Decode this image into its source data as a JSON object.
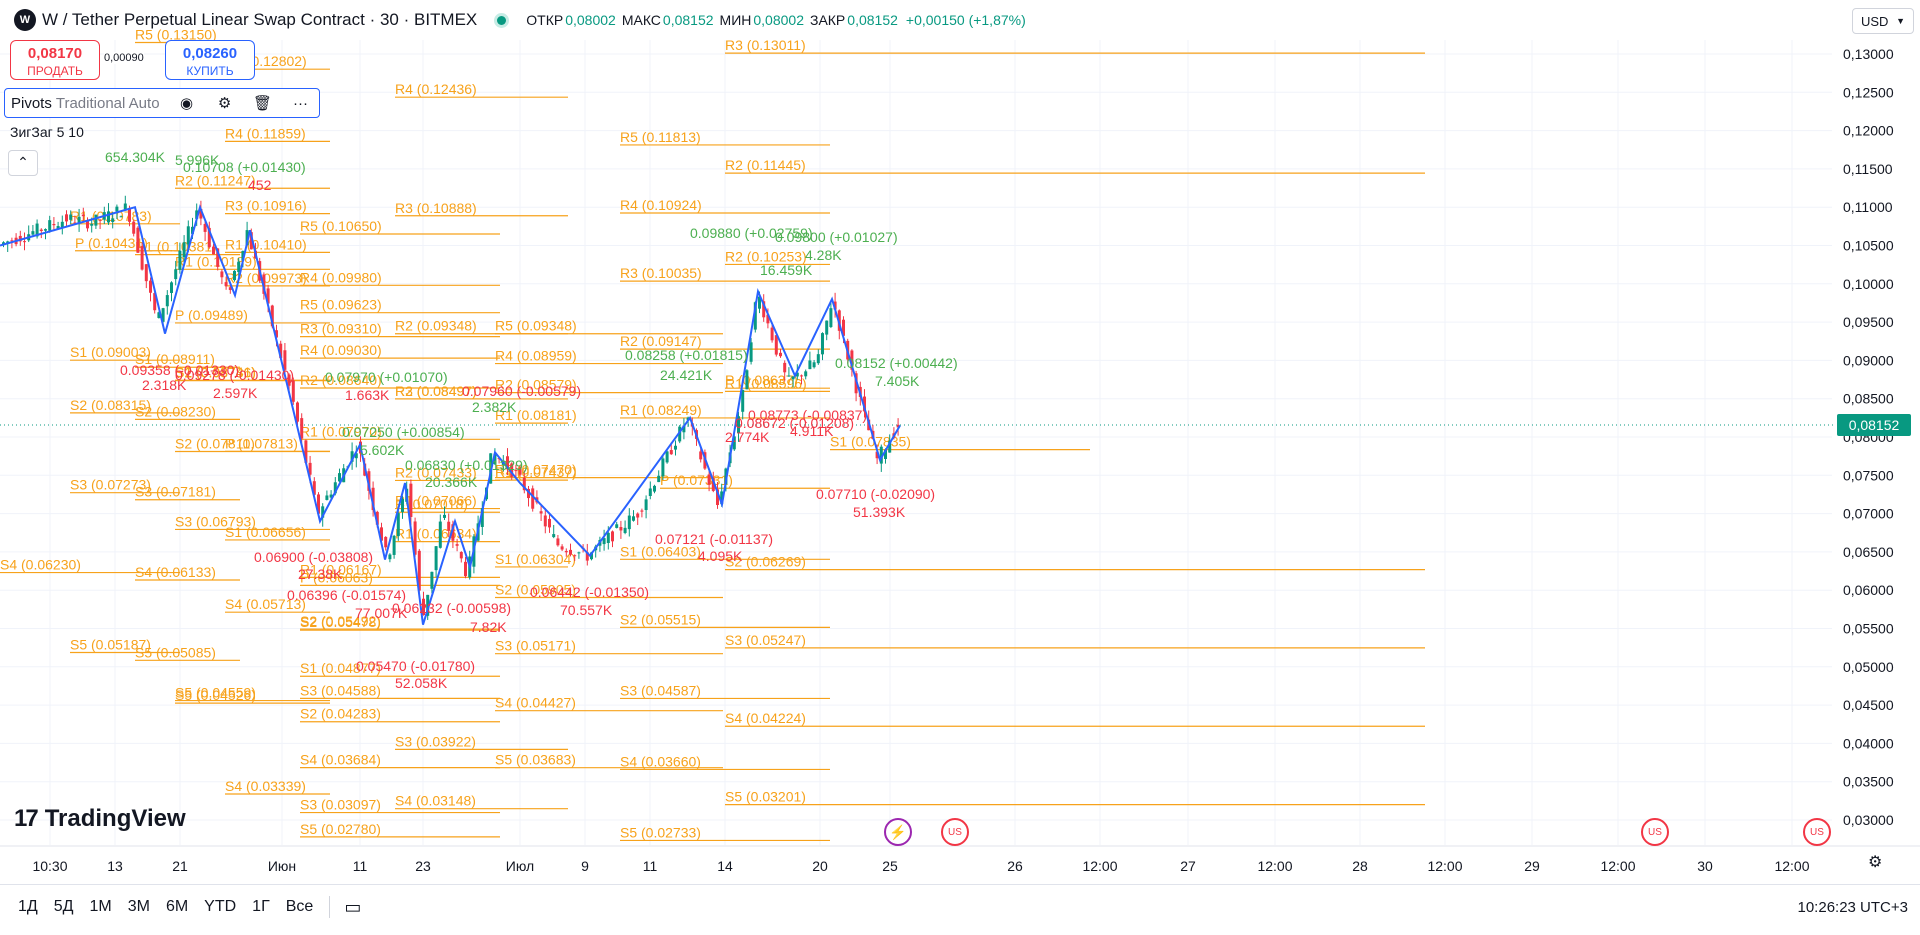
{
  "header": {
    "symbol_title": "W / Tether Perpetual Linear Swap Contract · 30 · BITMEX",
    "logo_text": "W",
    "ohlc": [
      {
        "label": "ОТКР",
        "value": "0,08002"
      },
      {
        "label": "МАКС",
        "value": "0,08152"
      },
      {
        "label": "МИН",
        "value": "0,08002"
      },
      {
        "label": "ЗАКР",
        "value": "0,08152"
      }
    ],
    "change": "+0,00150 (+1,87%)",
    "currency": "USD"
  },
  "trade": {
    "sell_price": "0,08170",
    "sell_label": "ПРОДАТЬ",
    "spread": "0,00090",
    "buy_price": "0,08260",
    "buy_label": "КУПИТЬ"
  },
  "indicators": {
    "pivots_name": "Pivots",
    "pivots_params": "Traditional Auto",
    "zigzag": "ЗигЗаг 5 10"
  },
  "colors": {
    "pivot": "#f7a21b",
    "up": "#089981",
    "down": "#f23645",
    "zigzag": "#2962ff",
    "grid": "#f0f3fa",
    "text_green": "#4caf50",
    "text_red": "#f23645"
  },
  "price_axis": {
    "labels": [
      "0,13000",
      "0,12500",
      "0,12000",
      "0,11500",
      "0,11000",
      "0,10500",
      "0,10000",
      "0,09500",
      "0,09000",
      "0,08500",
      "0,08000",
      "0,07500",
      "0,07000",
      "0,06500",
      "0,06000",
      "0,05500",
      "0,05000",
      "0,04500",
      "0,04000",
      "0,03500",
      "0,03000"
    ],
    "current_price": "0,08152"
  },
  "time_axis": {
    "labels": [
      "10:30",
      "13",
      "21",
      "Июн",
      "11",
      "23",
      "Июл",
      "9",
      "11",
      "14",
      "20",
      "25",
      "26",
      "12:00",
      "27",
      "12:00",
      "28",
      "12:00",
      "29",
      "12:00",
      "30",
      "12:00"
    ]
  },
  "pivot_levels": [
    [
      "R3 (0.13011)",
      0.13011,
      0
    ],
    [
      "R4 (0.12436)",
      0.12436,
      0
    ],
    [
      "R5 (0.11813)",
      0.11813,
      0
    ],
    [
      "R2 (0.11445)",
      0.11445,
      0
    ],
    [
      "R3 (0.10888)",
      0.10888,
      0
    ],
    [
      "R4 (0.10924)",
      0.10924,
      0
    ],
    [
      "R3 (0.10035)",
      0.10035,
      0
    ],
    [
      "R2 (0.09147)",
      0.09147,
      0
    ],
    [
      "R4 (0.08959)",
      0.08959,
      0
    ],
    [
      "R1 (0.08249)",
      0.08249,
      0
    ],
    [
      "S1 (0.07835)",
      0.07835,
      0
    ],
    [
      "P (0.07331)",
      0.07331,
      0
    ],
    [
      "S1 (0.06403)",
      0.06403,
      0
    ],
    [
      "S2 (0.06269)",
      0.06269,
      0
    ],
    [
      "S2 (0.05515)",
      0.05515,
      0
    ],
    [
      "S3 (0.05247)",
      0.05247,
      0
    ],
    [
      "S3 (0.04587)",
      0.04587,
      0
    ],
    [
      "S4 (0.04224)",
      0.04224,
      0
    ],
    [
      "S4 (0.03660)",
      0.0366,
      0
    ],
    [
      "S5 (0.03201)",
      0.03201,
      0
    ],
    [
      "S5 (0.02733)",
      0.02733,
      0
    ],
    [
      "R5 (0.10650)",
      0.1065,
      0
    ],
    [
      "R3 (0.10916)",
      0.10916,
      0
    ],
    [
      "R2 (0.11247)",
      0.11247,
      0
    ],
    [
      "R4 (0.09980)",
      0.0998,
      0
    ],
    [
      "R5 (0.09623)",
      0.09623,
      0
    ],
    [
      "R3 (0.09310)",
      0.0931,
      0
    ],
    [
      "R4 (0.09030)",
      0.0903,
      0
    ],
    [
      "R2 (0.09348)",
      0.09348,
      0
    ],
    [
      "R5 (0.09348)",
      0.09348,
      0
    ],
    [
      "R1 (0.08181)",
      0.08181,
      0
    ],
    [
      "R1 (0.07437)",
      0.07437,
      0
    ],
    [
      "S1 (0.06304)",
      0.06304,
      0
    ],
    [
      "S2 (0.05905)",
      0.05905,
      0
    ],
    [
      "S3 (0.05171)",
      0.05171,
      0
    ],
    [
      "S4 (0.04427)",
      0.04427,
      0
    ],
    [
      "S5 (0.03683)",
      0.03683,
      0
    ],
    [
      "S4 (0.03148)",
      0.03148,
      0
    ],
    [
      "S3 (0.03922)",
      0.03922,
      0
    ],
    [
      "S2 (0.04283)",
      0.04283,
      0
    ],
    [
      "S1 (0.04877)",
      0.04877,
      0
    ],
    [
      "S2 (0.05492)",
      0.05492,
      0
    ],
    [
      "S3 (0.06793)",
      0.06793,
      0
    ],
    [
      "S1 (0.06656)",
      0.06656,
      0
    ],
    [
      "S4 (0.05713)",
      0.05713,
      0
    ],
    [
      "S5 (0.04526)",
      0.04526,
      0
    ],
    [
      "S3 (0.04588)",
      0.04588,
      0
    ],
    [
      "S4 (0.03684)",
      0.03684,
      0
    ],
    [
      "S4 (0.03339)",
      0.03339,
      0
    ],
    [
      "S3 (0.03097)",
      0.03097,
      0
    ],
    [
      "S5 (0.02780)",
      0.0278,
      0
    ],
    [
      "R3 (0.08497)",
      0.08497,
      0
    ],
    [
      "R2 (0.08640)",
      0.0864,
      0
    ],
    [
      "R1 (0.07970)",
      0.0797,
      0
    ],
    [
      "S2 (0.07811)",
      0.07811,
      0
    ],
    [
      "P (0.07813)",
      0.07813,
      0
    ],
    [
      "S3 (0.07181)",
      0.07181,
      0
    ],
    [
      "S1 (0.09003)",
      0.09003,
      0
    ],
    [
      "S2 (0.08315)",
      0.08315,
      0
    ],
    [
      "S2 (0.08230)",
      0.0823,
      0
    ],
    [
      "S3 (0.07273)",
      0.07273,
      0
    ],
    [
      "S4 (0.06230)",
      0.0623,
      0
    ],
    [
      "S4 (0.06133)",
      0.06133,
      0
    ],
    [
      "S5 (0.05187)",
      0.05187,
      0
    ],
    [
      "S5 (0.05085)",
      0.05085,
      0
    ],
    [
      "S5 (0.04559)",
      0.04559,
      0
    ],
    [
      "P (0.10431)",
      0.10431,
      0
    ],
    [
      "P (0.09489)",
      0.09489,
      0
    ],
    [
      "R1 (0.10783)",
      0.10783,
      0
    ],
    [
      "R1 (0.10381)",
      0.10381,
      0
    ],
    [
      "R2 (0.09973)",
      0.09973,
      0
    ],
    [
      "R1 (0.10189)",
      0.10189,
      0
    ],
    [
      "R4 (0.12802)",
      0.12802,
      0
    ],
    [
      "R4 (0.11859)",
      0.11859,
      0
    ],
    [
      "R5 (0.13150)",
      0.1315,
      0
    ],
    [
      "S1 (0.08911)",
      0.08911,
      0
    ],
    [
      "S2 (0.08736)",
      0.08736,
      0
    ],
    [
      "S1 (0.08741)",
      0.08741,
      0
    ],
    [
      "R2 (0.08497)",
      0.08497,
      0
    ],
    [
      "P (0.07018)",
      0.07018,
      0
    ],
    [
      "R1 (0.07066)",
      0.07066,
      0
    ],
    [
      "P (0.06063)",
      0.06063,
      0
    ],
    [
      "R1 (0.06167)",
      0.06167,
      0
    ],
    [
      "R1 (0.06634)",
      0.06634,
      0
    ],
    [
      "R2 (0.07433)",
      0.07433,
      0
    ],
    [
      "R2 (0.07470)",
      0.0747,
      0
    ],
    [
      "R2 (0.08579)",
      0.08579,
      0
    ],
    [
      "R1 (0.08596)",
      0.08596,
      0
    ],
    [
      "P (0.08637)",
      0.08637,
      0
    ],
    [
      "R2 (0.10253)",
      0.10253,
      0
    ],
    [
      "R1 (0.10410)",
      0.1041,
      0
    ],
    [
      "S2 (0.05478)",
      0.05478,
      0
    ]
  ],
  "zigzag_labels": [
    {
      "text": "0.10708 (+0.01430)",
      "c": "up"
    },
    {
      "text": "5.996K",
      "c": "up"
    },
    {
      "text": "654.304K",
      "c": "up"
    },
    {
      "text": "0.09880 (+0.02759)",
      "c": "up"
    },
    {
      "text": "0.09800 (+0.01027)",
      "c": "up"
    },
    {
      "text": "16.459K",
      "c": "up"
    },
    {
      "text": "4.28K",
      "c": "up"
    },
    {
      "text": "0.08258 (+0.01815)",
      "c": "up"
    },
    {
      "text": "24.421K",
      "c": "up"
    },
    {
      "text": "0.08152 (+0.00442)",
      "c": "up"
    },
    {
      "text": "7.405K",
      "c": "up"
    },
    {
      "text": "0.07250 (+0.00854)",
      "c": "up"
    },
    {
      "text": "0.06830 (+0.01329)",
      "c": "up"
    },
    {
      "text": "20.366K",
      "c": "up"
    },
    {
      "text": "0.07970 (+0.01070)",
      "c": "up"
    },
    {
      "text": "2.382K",
      "c": "up"
    },
    {
      "text": "5.602K",
      "c": "up"
    },
    {
      "text": "0.09358 (-0.01330)",
      "c": "down"
    },
    {
      "text": "0.09278 (-0.01430)",
      "c": "down"
    },
    {
      "text": "2.318K",
      "c": "down"
    },
    {
      "text": "2.597K",
      "c": "down"
    },
    {
      "text": "0.08773 (-0.00837)",
      "c": "down"
    },
    {
      "text": "0.08672 (-0.01208)",
      "c": "down"
    },
    {
      "text": "2.774K",
      "c": "down"
    },
    {
      "text": "4.911K",
      "c": "down"
    },
    {
      "text": "0.07710 (-0.02090)",
      "c": "down"
    },
    {
      "text": "51.393K",
      "c": "down"
    },
    {
      "text": "0.07121 (-0.01137)",
      "c": "down"
    },
    {
      "text": "4.095K",
      "c": "down"
    },
    {
      "text": "0.06900 (-0.03808)",
      "c": "down"
    },
    {
      "text": "27.38K",
      "c": "down"
    },
    {
      "text": "0.06396 (-0.01574)",
      "c": "down"
    },
    {
      "text": "77.007K",
      "c": "down"
    },
    {
      "text": "0.06232 (-0.00598)",
      "c": "down"
    },
    {
      "text": "7.82K",
      "c": "down"
    },
    {
      "text": "0.06442 (-0.01350)",
      "c": "down"
    },
    {
      "text": "70.557K",
      "c": "down"
    },
    {
      "text": "0.05470 (-0.01780)",
      "c": "down"
    },
    {
      "text": "52.058K",
      "c": "down"
    },
    {
      "text": "0.07960 (-0.00579)",
      "c": "down"
    },
    {
      "text": "1.663K",
      "c": "down"
    },
    {
      "text": "452",
      "c": "down"
    }
  ],
  "events": [
    {
      "icon": "lightning-icon",
      "glyph": "⚡"
    },
    {
      "icon": "us-flag-icon",
      "glyph": "US"
    },
    {
      "icon": "us-flag-icon",
      "glyph": "US"
    },
    {
      "icon": "us-flag-icon",
      "glyph": "US"
    }
  ],
  "branding": {
    "name": "TradingView",
    "mark": "17"
  },
  "bottom_bar": {
    "ranges": [
      "1Д",
      "5Д",
      "1М",
      "3М",
      "6М",
      "YTD",
      "1Г",
      "Все"
    ],
    "clock": "10:26:23 UTC+3"
  },
  "icons": {
    "eye": "eye-icon",
    "settings": "settings-icon",
    "delete": "trash-icon",
    "more": "more-icon",
    "collapse": "chevron-up-icon",
    "calendar": "calendar-range-icon",
    "chart_settings": "gear-icon"
  }
}
